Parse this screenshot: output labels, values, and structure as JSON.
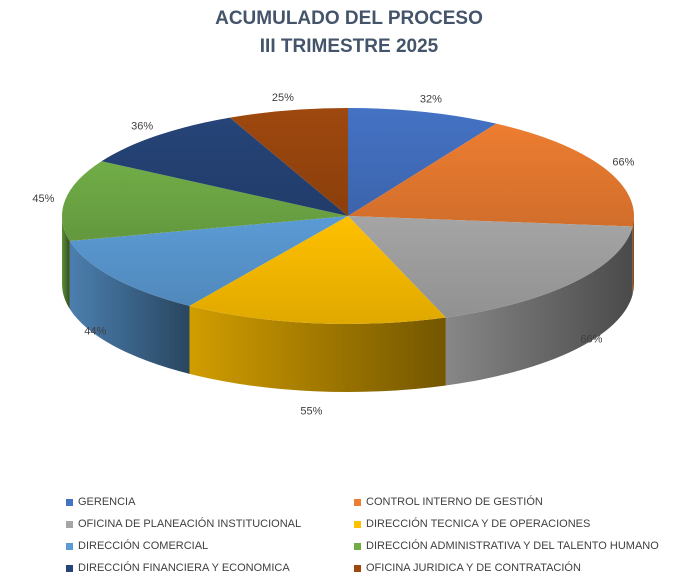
{
  "title_line1": "ACUMULADO DEL PROCESO",
  "title_line2": "III TRIMESTRE 2025",
  "chart_data": {
    "type": "pie",
    "title": "ACUMULADO DEL PROCESO III TRIMESTRE 2025",
    "three_d": true,
    "legend_position": "bottom",
    "slices": [
      {
        "name": "GERENCIA",
        "value": 32,
        "label": "32%",
        "color": "#4472c4"
      },
      {
        "name": "CONTROL INTERNO DE GESTIÓN",
        "value": 66,
        "label": "66%",
        "color": "#ed7d31"
      },
      {
        "name": "OFICINA DE PLANEACIÓN INSTITUCIONAL",
        "value": 66,
        "label": "66%",
        "color": "#a5a5a5"
      },
      {
        "name": "DIRECCIÓN TECNICA Y DE OPERACIONES",
        "value": 55,
        "label": "55%",
        "color": "#ffc000"
      },
      {
        "name": "DIRECCIÓN COMERCIAL",
        "value": 44,
        "label": "44%",
        "color": "#5b9bd5"
      },
      {
        "name": "DIRECCIÓN ADMINISTRATIVA Y DEL TALENTO HUMANO",
        "value": 45,
        "label": "45%",
        "color": "#70ad47"
      },
      {
        "name": "DIRECCIÓN FINANCIERA Y ECONOMICA",
        "value": 36,
        "label": "36%",
        "color": "#264478"
      },
      {
        "name": "OFICINA JURIDICA Y DE CONTRATACIÓN",
        "value": 25,
        "label": "25%",
        "color": "#9e480e"
      }
    ]
  }
}
